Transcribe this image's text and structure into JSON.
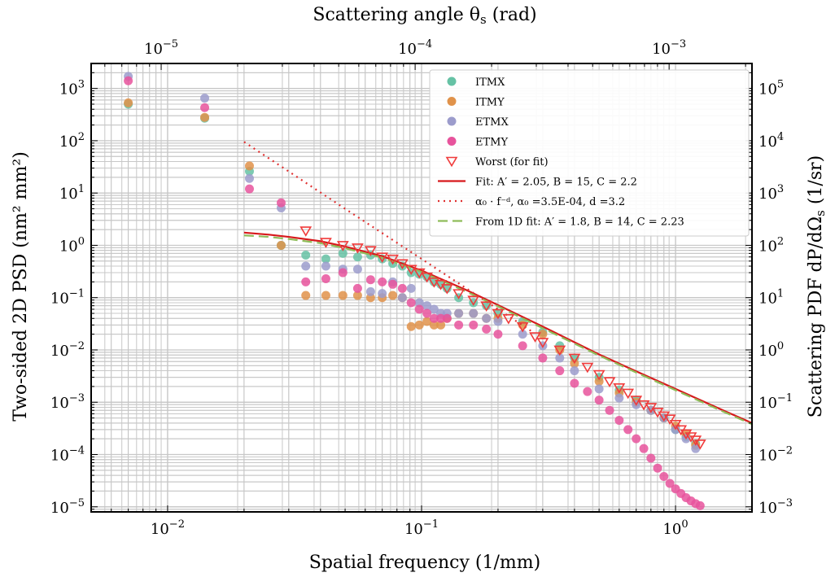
{
  "chart_data": {
    "type": "scatter",
    "xlabel": "Spatial frequency (1/mm)",
    "ylabel": "Two-sided 2D PSD (nm² mm²)",
    "top_xlabel": "Scattering angle θ",
    "top_xlabel_sub": "s",
    "top_xlabel_unit": " (rad)",
    "right_ylabel": "Scattering PDF dP/dΩ",
    "right_ylabel_sub": "s",
    "right_ylabel_unit": "  (1/sr)",
    "xscale": "log",
    "yscale": "log",
    "xlim": [
      0.005,
      2.0
    ],
    "ylim": [
      8e-06,
      3000
    ],
    "top_xlim": [
      5.3e-06,
      0.00212
    ],
    "right_ylim": [
      0.0008,
      300000.0
    ],
    "grid": true,
    "legend_position": "top-right",
    "x_ticks": [
      {
        "v": 0.01,
        "b": "10",
        "e": "−2"
      },
      {
        "v": 0.1,
        "b": "10",
        "e": "−1"
      },
      {
        "v": 1,
        "b": "10",
        "e": "0"
      }
    ],
    "y_ticks": [
      {
        "v": 1e-05,
        "b": "10",
        "e": "−5"
      },
      {
        "v": 0.0001,
        "b": "10",
        "e": "−4"
      },
      {
        "v": 0.001,
        "b": "10",
        "e": "−3"
      },
      {
        "v": 0.01,
        "b": "10",
        "e": "−2"
      },
      {
        "v": 0.1,
        "b": "10",
        "e": "−1"
      },
      {
        "v": 1,
        "b": "10",
        "e": "0"
      },
      {
        "v": 10,
        "b": "10",
        "e": "1"
      },
      {
        "v": 100,
        "b": "10",
        "e": "2"
      },
      {
        "v": 1000,
        "b": "10",
        "e": "3"
      }
    ],
    "top_ticks": [
      {
        "v": 1e-05,
        "b": "10",
        "e": "−5"
      },
      {
        "v": 0.0001,
        "b": "10",
        "e": "−4"
      },
      {
        "v": 0.001,
        "b": "10",
        "e": "−3"
      }
    ],
    "right_ticks": [
      {
        "v": 0.001,
        "b": "10",
        "e": "−3"
      },
      {
        "v": 0.01,
        "b": "10",
        "e": "−2"
      },
      {
        "v": 0.1,
        "b": "10",
        "e": "−1"
      },
      {
        "v": 1,
        "b": "10",
        "e": "0"
      },
      {
        "v": 10,
        "b": "10",
        "e": "1"
      },
      {
        "v": 100,
        "b": "10",
        "e": "2"
      },
      {
        "v": 1000,
        "b": "10",
        "e": "3"
      },
      {
        "v": 10000,
        "b": "10",
        "e": "4"
      },
      {
        "v": 100000,
        "b": "10",
        "e": "5"
      }
    ],
    "series": [
      {
        "name": "ITMX",
        "kind": "points",
        "color": "#66c2a5",
        "x": [
          0.007,
          0.014,
          0.021,
          0.028,
          0.035,
          0.042,
          0.049,
          0.056,
          0.063,
          0.07,
          0.077,
          0.084,
          0.091,
          0.098,
          0.105,
          0.112,
          0.119,
          0.126,
          0.14,
          0.16,
          0.18,
          0.2,
          0.25,
          0.3,
          0.35,
          0.4,
          0.5,
          0.6,
          0.7,
          0.8,
          0.9,
          1.0,
          1.1,
          1.2
        ],
        "y": [
          500,
          270,
          26,
          1.0,
          0.65,
          0.55,
          0.7,
          0.6,
          0.65,
          0.55,
          0.45,
          0.4,
          0.3,
          0.28,
          0.25,
          0.2,
          0.18,
          0.15,
          0.1,
          0.08,
          0.07,
          0.05,
          0.035,
          0.022,
          0.012,
          0.007,
          0.003,
          0.0017,
          0.0011,
          0.0007,
          0.0005,
          0.0003,
          0.00022,
          0.00016
        ]
      },
      {
        "name": "ITMY",
        "kind": "points",
        "color": "#e0924a",
        "x": [
          0.007,
          0.014,
          0.021,
          0.028,
          0.035,
          0.042,
          0.049,
          0.056,
          0.063,
          0.07,
          0.077,
          0.084,
          0.091,
          0.098,
          0.105,
          0.112,
          0.119,
          0.126,
          0.14,
          0.16,
          0.18,
          0.2,
          0.25,
          0.3,
          0.35,
          0.4,
          0.5,
          0.6,
          0.7,
          0.8,
          0.9,
          1.0,
          1.1,
          1.2
        ],
        "y": [
          530,
          280,
          33,
          1.0,
          0.11,
          0.11,
          0.11,
          0.11,
          0.1,
          0.1,
          0.11,
          0.1,
          0.028,
          0.03,
          0.035,
          0.03,
          0.03,
          0.04,
          0.05,
          0.05,
          0.04,
          0.04,
          0.03,
          0.02,
          0.01,
          0.0055,
          0.0025,
          0.0015,
          0.001,
          0.0007,
          0.0005,
          0.00035,
          0.00025,
          0.00015
        ]
      },
      {
        "name": "ETMX",
        "kind": "points",
        "color": "#9c9ccc",
        "x": [
          0.007,
          0.014,
          0.021,
          0.028,
          0.035,
          0.042,
          0.049,
          0.056,
          0.063,
          0.07,
          0.077,
          0.084,
          0.091,
          0.098,
          0.105,
          0.112,
          0.119,
          0.126,
          0.14,
          0.16,
          0.18,
          0.2,
          0.25,
          0.3,
          0.35,
          0.4,
          0.5,
          0.6,
          0.7,
          0.8,
          0.9,
          1.0,
          1.1,
          1.2
        ],
        "y": [
          1700,
          650,
          19,
          5.2,
          0.4,
          0.4,
          0.35,
          0.35,
          0.13,
          0.12,
          0.2,
          0.1,
          0.15,
          0.08,
          0.07,
          0.06,
          0.05,
          0.05,
          0.05,
          0.05,
          0.04,
          0.035,
          0.02,
          0.012,
          0.007,
          0.004,
          0.0018,
          0.0012,
          0.0009,
          0.0007,
          0.0005,
          0.0003,
          0.0002,
          0.00013
        ]
      },
      {
        "name": "ETMY",
        "kind": "points",
        "color": "#e7539c",
        "x": [
          0.007,
          0.014,
          0.021,
          0.028,
          0.035,
          0.042,
          0.049,
          0.056,
          0.063,
          0.07,
          0.077,
          0.084,
          0.091,
          0.098,
          0.105,
          0.112,
          0.119,
          0.126,
          0.14,
          0.16,
          0.18,
          0.2,
          0.25,
          0.3,
          0.35,
          0.4,
          0.45,
          0.5,
          0.55,
          0.6,
          0.65,
          0.7,
          0.75,
          0.8,
          0.85,
          0.9,
          0.95,
          1.0,
          1.05,
          1.1,
          1.15,
          1.2,
          1.25
        ],
        "y": [
          1400,
          430,
          12,
          6.5,
          0.2,
          0.23,
          0.3,
          0.15,
          0.22,
          0.2,
          0.18,
          0.15,
          0.08,
          0.06,
          0.05,
          0.04,
          0.04,
          0.04,
          0.03,
          0.03,
          0.025,
          0.02,
          0.012,
          0.007,
          0.004,
          0.0023,
          0.0016,
          0.0011,
          0.0007,
          0.00045,
          0.0003,
          0.0002,
          0.00013,
          8.5e-05,
          5.5e-05,
          3.8e-05,
          2.8e-05,
          2.2e-05,
          1.8e-05,
          1.5e-05,
          1.3e-05,
          1.15e-05,
          1.05e-05
        ]
      },
      {
        "name": "Worst (for fit)",
        "kind": "triangles",
        "color": "#f03b3b",
        "x": [
          0.035,
          0.042,
          0.049,
          0.056,
          0.063,
          0.07,
          0.077,
          0.084,
          0.091,
          0.098,
          0.105,
          0.112,
          0.119,
          0.126,
          0.14,
          0.16,
          0.18,
          0.2,
          0.22,
          0.25,
          0.28,
          0.3,
          0.35,
          0.4,
          0.45,
          0.5,
          0.55,
          0.6,
          0.65,
          0.7,
          0.75,
          0.8,
          0.85,
          0.9,
          0.95,
          1.0,
          1.05,
          1.1,
          1.15,
          1.2,
          1.25
        ],
        "y": [
          1.9,
          1.15,
          1.0,
          0.9,
          0.8,
          0.6,
          0.55,
          0.45,
          0.35,
          0.3,
          0.25,
          0.2,
          0.18,
          0.15,
          0.12,
          0.09,
          0.07,
          0.05,
          0.04,
          0.028,
          0.018,
          0.014,
          0.01,
          0.007,
          0.0047,
          0.0034,
          0.0025,
          0.0019,
          0.0015,
          0.0011,
          0.0009,
          0.0008,
          0.00065,
          0.00055,
          0.00048,
          0.00038,
          0.0003,
          0.00025,
          0.00022,
          0.00019,
          0.00016
        ]
      },
      {
        "name": "Fit: A′ = 2.05, B = 15, C = 2.2",
        "kind": "line",
        "color": "#d7191c",
        "dash": "",
        "x": [
          0.02,
          0.025,
          0.03,
          0.04,
          0.05,
          0.07,
          0.1,
          0.15,
          0.2,
          0.3,
          0.5,
          0.7,
          1.0,
          1.5,
          2.0
        ],
        "y": [
          1.75,
          1.6,
          1.45,
          1.2,
          0.95,
          0.62,
          0.33,
          0.14,
          0.072,
          0.028,
          0.0082,
          0.0039,
          0.0018,
          0.00074,
          0.0004
        ]
      },
      {
        "name": "α₀ · f⁻ᵈ, α₀ =3.5E-04, d =3.2",
        "kind": "line",
        "color": "#e03030",
        "dash": "2,5",
        "x": [
          0.02,
          0.05,
          0.1,
          0.2,
          0.27
        ],
        "y": [
          95,
          5.0,
          0.55,
          0.06,
          0.023
        ]
      },
      {
        "name": "From 1D fit: A′ = 1.8, B = 14, C = 2.23",
        "kind": "line",
        "color": "#8fbc5a",
        "dash": "12,6",
        "x": [
          0.02,
          0.025,
          0.03,
          0.04,
          0.05,
          0.07,
          0.1,
          0.15,
          0.2,
          0.3,
          0.5,
          0.7,
          1.0,
          1.5,
          2.0
        ],
        "y": [
          1.55,
          1.45,
          1.32,
          1.1,
          0.88,
          0.58,
          0.31,
          0.13,
          0.068,
          0.026,
          0.0078,
          0.0037,
          0.0017,
          0.0007,
          0.00038
        ]
      }
    ],
    "legend": [
      {
        "text": "ITMX",
        "marker": "dot",
        "color": "#66c2a5"
      },
      {
        "text": "ITMY",
        "marker": "dot",
        "color": "#e0924a"
      },
      {
        "text": "ETMX",
        "marker": "dot",
        "color": "#9c9ccc"
      },
      {
        "text": "ETMY",
        "marker": "dot",
        "color": "#e7539c"
      },
      {
        "text": "Worst (for fit)",
        "marker": "triangle",
        "color": "#f03b3b"
      },
      {
        "text": "Fit: A′ = 2.05, B = 15, C = 2.2",
        "marker": "solid",
        "color": "#d7191c"
      },
      {
        "text": "α₀ · f⁻ᵈ, α₀ =3.5E-04, d =3.2",
        "marker": "dotted",
        "color": "#e03030"
      },
      {
        "text": "From 1D fit: A′ = 1.8, B = 14, C = 2.23",
        "marker": "dashed",
        "color": "#8fbc5a"
      }
    ]
  }
}
